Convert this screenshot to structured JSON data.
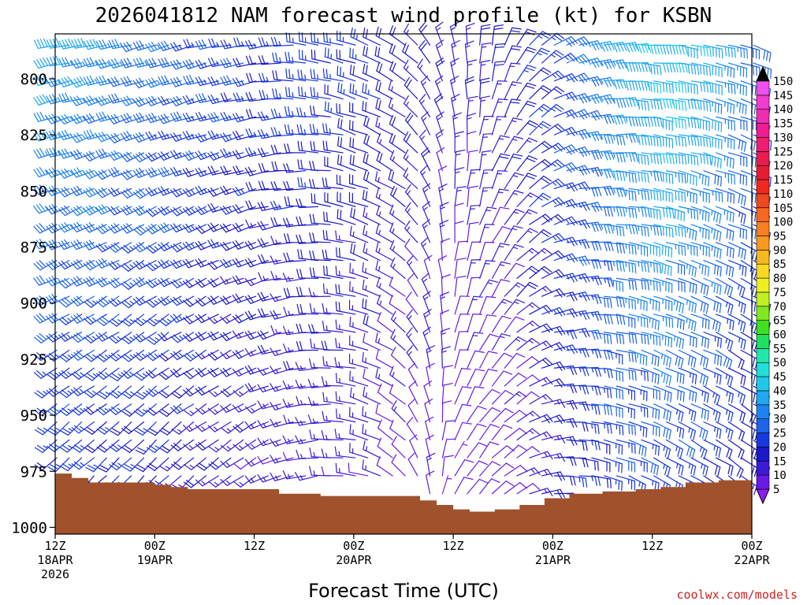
{
  "chart_data": {
    "type": "wind-barb time-height profile",
    "title": "2026041812 NAM forecast wind profile (kt) for KSBN",
    "xlabel": "Forecast Time (UTC)",
    "ylabel": "",
    "y_ticks": [
      "800",
      "825",
      "850",
      "875",
      "900",
      "925",
      "950",
      "975",
      "1000"
    ],
    "y_tick_values": [
      800,
      825,
      850,
      875,
      900,
      925,
      950,
      975,
      1000
    ],
    "ylim": [
      1003,
      780
    ],
    "x_range_hours": [
      0,
      84
    ],
    "x_ticks": [
      {
        "hour": 0,
        "label1": "12Z",
        "label2": "18APR",
        "label3": "2026"
      },
      {
        "hour": 12,
        "label1": "00Z",
        "label2": "19APR",
        "label3": ""
      },
      {
        "hour": 24,
        "label1": "12Z",
        "label2": "",
        "label3": ""
      },
      {
        "hour": 36,
        "label1": "00Z",
        "label2": "20APR",
        "label3": ""
      },
      {
        "hour": 48,
        "label1": "12Z",
        "label2": "",
        "label3": ""
      },
      {
        "hour": 60,
        "label1": "00Z",
        "label2": "21APR",
        "label3": ""
      },
      {
        "hour": 72,
        "label1": "12Z",
        "label2": "",
        "label3": ""
      },
      {
        "hour": 84,
        "label1": "00Z",
        "label2": "22APR",
        "label3": ""
      }
    ],
    "colorbar": {
      "label_values": [
        "5",
        "10",
        "15",
        "20",
        "25",
        "30",
        "35",
        "40",
        "45",
        "50",
        "55",
        "60",
        "65",
        "70",
        "75",
        "80",
        "85",
        "90",
        "95",
        "100",
        "105",
        "110",
        "115",
        "120",
        "125",
        "130",
        "135",
        "140",
        "145",
        "150"
      ],
      "colors": [
        "#8b1cf0",
        "#6a1ae8",
        "#3c1ad8",
        "#1a18c8",
        "#1838e0",
        "#1c64e8",
        "#1c84f0",
        "#20a8f0",
        "#20c8e8",
        "#20e0d8",
        "#20e8a8",
        "#20e060",
        "#40e020",
        "#80e820",
        "#c0f020",
        "#f0f020",
        "#f8d820",
        "#f8b820",
        "#f89820",
        "#f88020",
        "#f86820",
        "#f04820",
        "#f02820",
        "#e81c30",
        "#e81c50",
        "#f01c70",
        "#f01c90",
        "#f02cb0",
        "#f03cd0",
        "#f050f0"
      ]
    },
    "terrain_surface_pressure": [
      {
        "hour": 0,
        "p": 976
      },
      {
        "hour": 2,
        "p": 978
      },
      {
        "hour": 4,
        "p": 980
      },
      {
        "hour": 8,
        "p": 980
      },
      {
        "hour": 12,
        "p": 981
      },
      {
        "hour": 14,
        "p": 982
      },
      {
        "hour": 16,
        "p": 983
      },
      {
        "hour": 24,
        "p": 983
      },
      {
        "hour": 27,
        "p": 985
      },
      {
        "hour": 32,
        "p": 986
      },
      {
        "hour": 42,
        "p": 986
      },
      {
        "hour": 44,
        "p": 988
      },
      {
        "hour": 46,
        "p": 990
      },
      {
        "hour": 48,
        "p": 992
      },
      {
        "hour": 50,
        "p": 993
      },
      {
        "hour": 53,
        "p": 992
      },
      {
        "hour": 56,
        "p": 990
      },
      {
        "hour": 59,
        "p": 987
      },
      {
        "hour": 62,
        "p": 985
      },
      {
        "hour": 66,
        "p": 984
      },
      {
        "hour": 70,
        "p": 983
      },
      {
        "hour": 73,
        "p": 982
      },
      {
        "hour": 76,
        "p": 980
      },
      {
        "hour": 80,
        "p": 979
      },
      {
        "hour": 84,
        "p": 978
      }
    ],
    "wind_regimes": [
      {
        "hour": 0,
        "dir_low": 225,
        "dir_high": 260,
        "spd_low": 20,
        "spd_high": 40
      },
      {
        "hour": 12,
        "dir_low": 220,
        "dir_high": 255,
        "spd_low": 20,
        "spd_high": 32
      },
      {
        "hour": 24,
        "dir_low": 235,
        "dir_high": 260,
        "spd_low": 12,
        "spd_high": 25
      },
      {
        "hour": 36,
        "dir_low": 275,
        "dir_high": 290,
        "spd_low": 12,
        "spd_high": 25
      },
      {
        "hour": 42,
        "dir_low": 315,
        "dir_high": 300,
        "spd_low": 10,
        "spd_high": 20
      },
      {
        "hour": 48,
        "dir_low": 35,
        "dir_high": 345,
        "spd_low": 8,
        "spd_high": 15
      },
      {
        "hour": 54,
        "dir_low": 55,
        "dir_high": 20,
        "spd_low": 8,
        "spd_high": 20
      },
      {
        "hour": 60,
        "dir_low": 90,
        "dir_high": 60,
        "spd_low": 18,
        "spd_high": 28
      },
      {
        "hour": 66,
        "dir_low": 110,
        "dir_high": 85,
        "spd_low": 22,
        "spd_high": 40
      },
      {
        "hour": 72,
        "dir_low": 120,
        "dir_high": 95,
        "spd_low": 25,
        "spd_high": 45
      },
      {
        "hour": 78,
        "dir_low": 125,
        "dir_high": 100,
        "spd_low": 20,
        "spd_high": 40
      },
      {
        "hour": 84,
        "dir_low": 130,
        "dir_high": 110,
        "spd_low": 15,
        "spd_high": 30
      }
    ]
  },
  "credit": "coolwx.com/models"
}
